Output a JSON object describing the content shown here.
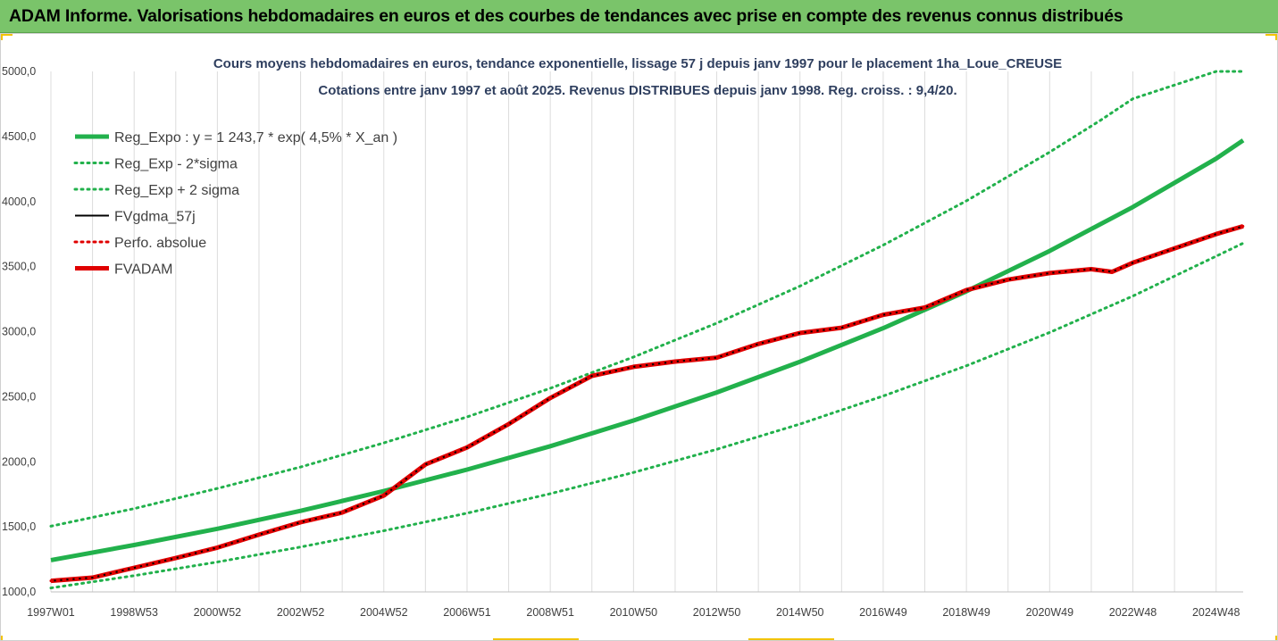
{
  "banner": {
    "title": "ADAM Informe. Valorisations hebdomadaires en euros et des courbes de tendances avec prise en compte des revenus connus distribués"
  },
  "chart_data": {
    "type": "line",
    "title": "Cours moyens hebdomadaires en euros, tendance exponentielle, lissage 57 j depuis janv 1997 pour le placement 1ha_Loue_CREUSE",
    "subtitle": "Cotations entre janv 1997 et août 2025. Revenus DISTRIBUES depuis janv 1998. Reg. croiss. : 9,4/20.",
    "xlabel": "",
    "ylabel": "",
    "ylim": [
      1000,
      5000
    ],
    "xlim": [
      1997.0,
      2025.65
    ],
    "y_ticks": [
      "1000,0",
      "1500,0",
      "2000,0",
      "2500,0",
      "3000,0",
      "3500,0",
      "4000,0",
      "4500,0",
      "5000,0"
    ],
    "x_ticks": [
      {
        "label": "1997W01",
        "x": 1997.0
      },
      {
        "label": "1998W53",
        "x": 1999.0
      },
      {
        "label": "2000W52",
        "x": 2001.0
      },
      {
        "label": "2002W52",
        "x": 2003.0
      },
      {
        "label": "2004W52",
        "x": 2005.0
      },
      {
        "label": "2006W51",
        "x": 2007.0
      },
      {
        "label": "2008W51",
        "x": 2009.0
      },
      {
        "label": "2010W50",
        "x": 2011.0
      },
      {
        "label": "2012W50",
        "x": 2013.0
      },
      {
        "label": "2014W50",
        "x": 2015.0
      },
      {
        "label": "2016W49",
        "x": 2017.0
      },
      {
        "label": "2018W49",
        "x": 2019.0
      },
      {
        "label": "2020W49",
        "x": 2021.0
      },
      {
        "label": "2022W48",
        "x": 2023.0
      },
      {
        "label": "2024W48",
        "x": 2025.0
      }
    ],
    "grid": "vertical",
    "legend_position": "top-left",
    "series": [
      {
        "name": "Reg_Expo : y = 1 243,7 * exp( 4,5% *  X_an )",
        "style": "solid-thick",
        "color": "#22b14c",
        "x": [
          1997.0,
          1999.0,
          2001.0,
          2003.0,
          2005.0,
          2007.0,
          2009.0,
          2011.0,
          2013.0,
          2015.0,
          2017.0,
          2019.0,
          2021.0,
          2023.0,
          2025.0,
          2025.65
        ],
        "y": [
          1244,
          1360,
          1485,
          1623,
          1775,
          1940,
          2120,
          2317,
          2533,
          2769,
          3027,
          3310,
          3620,
          3958,
          4330,
          4470
        ]
      },
      {
        "name": "Reg_Exp - 2*sigma",
        "style": "dotted",
        "color": "#22b14c",
        "x": [
          1997.0,
          1999.0,
          2001.0,
          2003.0,
          2005.0,
          2007.0,
          2009.0,
          2011.0,
          2013.0,
          2015.0,
          2017.0,
          2019.0,
          2021.0,
          2023.0,
          2025.0,
          2025.65
        ],
        "y": [
          1030,
          1125,
          1230,
          1345,
          1470,
          1605,
          1755,
          1918,
          2096,
          2290,
          2505,
          2738,
          2994,
          3274,
          3580,
          3680
        ]
      },
      {
        "name": "Reg_Exp + 2 sigma",
        "style": "dotted",
        "color": "#22b14c",
        "x": [
          1997.0,
          1999.0,
          2001.0,
          2003.0,
          2005.0,
          2007.0,
          2009.0,
          2011.0,
          2013.0,
          2015.0,
          2017.0,
          2019.0,
          2021.0,
          2022.2,
          2023.0,
          2025.0,
          2025.65
        ],
        "y": [
          1505,
          1640,
          1795,
          1960,
          2145,
          2345,
          2565,
          2805,
          3065,
          3350,
          3665,
          4005,
          4380,
          4620,
          4790,
          5000,
          5000
        ]
      },
      {
        "name": "FVgdma_57j",
        "style": "solid",
        "color": "#000000",
        "x": [
          1997.0,
          1998.0,
          1999.0,
          2000.0,
          2001.0,
          2002.0,
          2003.0,
          2004.0,
          2005.0,
          2006.0,
          2007.0,
          2008.0,
          2009.0,
          2010.0,
          2011.0,
          2012.0,
          2013.0,
          2014.0,
          2015.0,
          2016.0,
          2017.0,
          2018.0,
          2019.0,
          2020.0,
          2021.0,
          2022.0,
          2022.5,
          2023.0,
          2024.0,
          2025.0,
          2025.65
        ],
        "y": [
          1085,
          1110,
          1185,
          1260,
          1340,
          1440,
          1535,
          1610,
          1740,
          1980,
          2110,
          2290,
          2490,
          2660,
          2730,
          2770,
          2800,
          2905,
          2990,
          3030,
          3130,
          3185,
          3320,
          3400,
          3450,
          3480,
          3460,
          3530,
          3640,
          3750,
          3810
        ]
      },
      {
        "name": "Perfo. absolue",
        "style": "dotted",
        "color": "#e00000",
        "x": [
          1997.0,
          1998.0,
          1999.0,
          2000.0,
          2001.0,
          2002.0,
          2003.0,
          2004.0,
          2005.0,
          2006.0,
          2007.0,
          2008.0,
          2009.0,
          2010.0,
          2011.0,
          2012.0,
          2013.0,
          2014.0,
          2015.0,
          2016.0,
          2017.0,
          2018.0,
          2019.0,
          2020.0,
          2021.0,
          2022.0,
          2022.5,
          2023.0,
          2024.0,
          2025.0,
          2025.65
        ],
        "y": [
          1085,
          1110,
          1185,
          1260,
          1340,
          1440,
          1535,
          1610,
          1740,
          1980,
          2110,
          2290,
          2490,
          2660,
          2730,
          2770,
          2800,
          2905,
          2990,
          3030,
          3130,
          3185,
          3320,
          3400,
          3450,
          3480,
          3460,
          3530,
          3640,
          3750,
          3810
        ]
      },
      {
        "name": "FVADAM",
        "style": "solid-thick",
        "color": "#e00000",
        "x": [
          1997.0,
          1998.0,
          1999.0,
          2000.0,
          2001.0,
          2002.0,
          2003.0,
          2004.0,
          2005.0,
          2006.0,
          2007.0,
          2008.0,
          2009.0,
          2010.0,
          2011.0,
          2012.0,
          2013.0,
          2014.0,
          2015.0,
          2016.0,
          2017.0,
          2018.0,
          2019.0,
          2020.0,
          2021.0,
          2022.0,
          2022.5,
          2023.0,
          2024.0,
          2025.0,
          2025.65
        ],
        "y": [
          1085,
          1110,
          1185,
          1260,
          1340,
          1440,
          1535,
          1610,
          1740,
          1980,
          2110,
          2290,
          2490,
          2660,
          2730,
          2770,
          2800,
          2905,
          2990,
          3030,
          3130,
          3185,
          3320,
          3400,
          3450,
          3480,
          3460,
          3530,
          3640,
          3750,
          3810
        ]
      }
    ]
  }
}
